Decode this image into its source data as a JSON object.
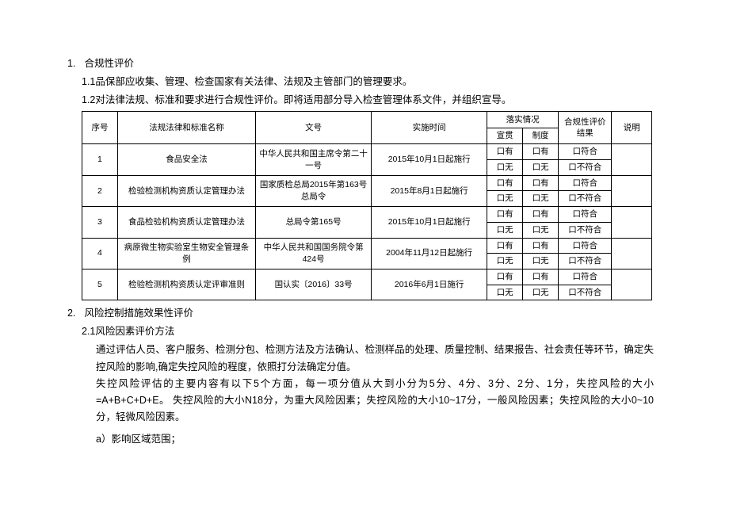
{
  "section1": {
    "number": "1.",
    "title": "合规性评价",
    "sub1": "1.1品保部应收集、管理、检查国家有关法律、法规及主管部门的管理要求。",
    "sub2": "1.2对法律法规、标准和要求进行合规性评价。即将适用部分导入检查管理体系文件，并组织宣导。"
  },
  "table": {
    "headers": {
      "col1": "序号",
      "col2": "法规法律和标准名称",
      "col3": "文号",
      "col4": "实施时间",
      "col5_parent": "落实情况",
      "col5a": "宣贯",
      "col5b": "制度",
      "col6": "合规性评价结果",
      "col7": "说明"
    },
    "opts": {
      "you": "口有",
      "wu": "口无",
      "fuhe": "口符合",
      "bufuhe": "口不符合"
    },
    "rows": [
      {
        "no": "1",
        "name": "食品安全法",
        "doc": "中华人民共和国主席令第二十一号",
        "time": "2015年10月1日起施行"
      },
      {
        "no": "2",
        "name": "检验检测机构资质认定管理办法",
        "doc": "国家质检总局2015年第163号总局令",
        "time": "2015年8月1日起施行"
      },
      {
        "no": "3",
        "name": "食品检验机构资质认定管理办法",
        "doc": "总局令第165号",
        "time": "2015年10月1日起施行"
      },
      {
        "no": "4",
        "name": "病原微生物实验室生物安全管理条例",
        "doc": "中华人民共和国国务院令第424号",
        "time": "2004年11月12日起施行"
      },
      {
        "no": "5",
        "name": "检验检测机构资质认定评审准则",
        "doc": "国认实〔2016〕33号",
        "time": "2016年6月1日施行"
      }
    ]
  },
  "section2": {
    "number": "2.",
    "title": "风险控制措施效果性评价",
    "sub1": "2.1风险因素评价方法",
    "para1": "通过评估人员、客户服务、检测分包、检测方法及方法确认、检测样品的处理、质量控制、结果报告、社会责任等环节，确定失控风险的影响,确定失控风险的程度，依照打分法确定分值。",
    "para2": "失控风险评估的主要内容有以下5个方面，每一项分值从大到小分为5分、4分、3分、2分、1分，失控风险的大小=A+B+C+D+E。  失控风险的大小N18分，为重大风险因素；失控风险的大小10~17分，一般风险因素；失控风险的大小0~10分，轻微风险因素。",
    "item_a": "a）影响区域范围；"
  }
}
